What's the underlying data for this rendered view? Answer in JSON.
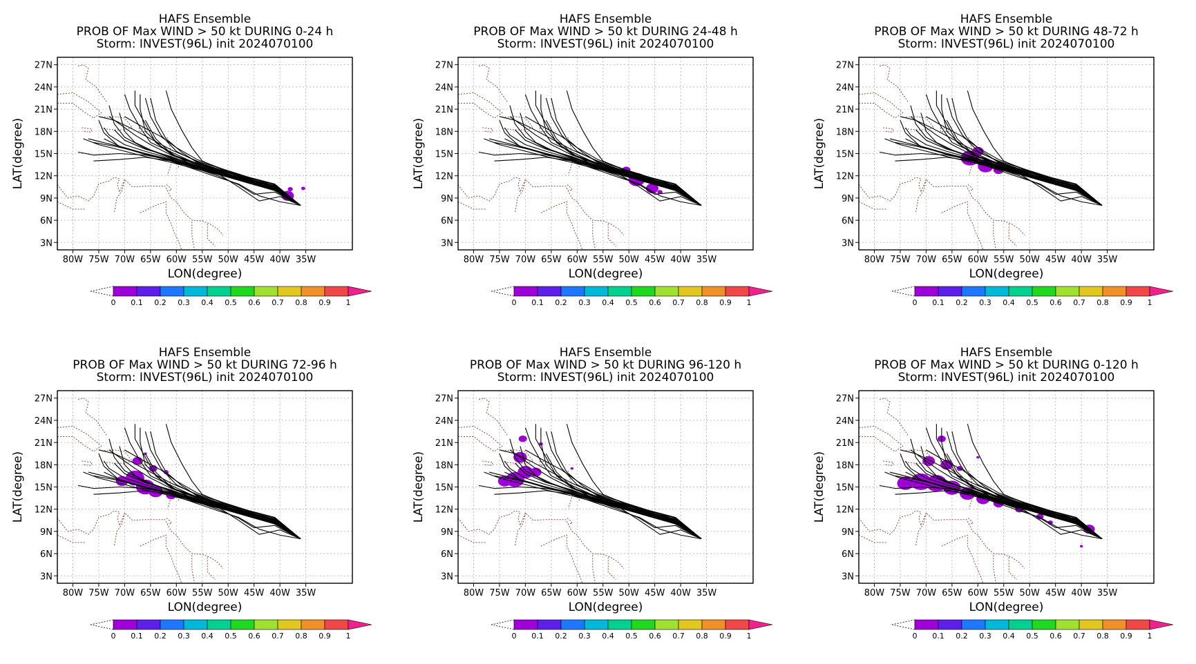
{
  "figure": {
    "panels": [
      {
        "title_line1": "HAFS Ensemble",
        "title_line2": "PROB OF Max WIND > 50 kt DURING  0-24 h",
        "title_line3": "Storm: INVEST(96L) init 2024070100"
      },
      {
        "title_line1": "HAFS Ensemble",
        "title_line2": "PROB OF Max WIND > 50 kt DURING 24-48 h",
        "title_line3": "Storm: INVEST(96L) init 2024070100"
      },
      {
        "title_line1": "HAFS Ensemble",
        "title_line2": "PROB OF Max WIND > 50 kt DURING 48-72 h",
        "title_line3": "Storm: INVEST(96L) init 2024070100"
      },
      {
        "title_line1": "HAFS Ensemble",
        "title_line2": "PROB OF Max WIND > 50 kt DURING 72-96 h",
        "title_line3": "Storm: INVEST(96L) init 2024070100"
      },
      {
        "title_line1": "HAFS Ensemble",
        "title_line2": "PROB OF Max WIND > 50 kt DURING 96-120 h",
        "title_line3": "Storm: INVEST(96L) init 2024070100"
      },
      {
        "title_line1": "HAFS Ensemble",
        "title_line2": "PROB OF Max WIND > 50 kt DURING 0-120 h",
        "title_line3": "Storm: INVEST(96L) init 2024070100"
      }
    ],
    "x_label": "LON(degree)",
    "y_label": "LAT(degree)",
    "x_ticks": [
      "80W",
      "75W",
      "70W",
      "65W",
      "60W",
      "55W",
      "50W",
      "45W",
      "40W",
      "35W"
    ],
    "y_ticks": [
      "3N",
      "6N",
      "9N",
      "12N",
      "15N",
      "18N",
      "21N",
      "24N",
      "27N"
    ],
    "colorbar": {
      "labels": [
        "0",
        "0.1",
        "0.2",
        "0.3",
        "0.4",
        "0.5",
        "0.6",
        "0.7",
        "0.8",
        "0.9",
        "1"
      ],
      "colors": [
        "#9f00d8",
        "#5c20e8",
        "#1e78ff",
        "#00b8d8",
        "#00d090",
        "#20d820",
        "#a0e030",
        "#e0c820",
        "#f09028",
        "#f04848",
        "#f0208c"
      ]
    }
  },
  "chart_data": {
    "type": "map",
    "region": {
      "lon_range": [
        -83,
        -26
      ],
      "lat_range": [
        2,
        28
      ]
    },
    "grid": true,
    "probability_fill_color": "#9f00d8",
    "ensemble_tracks_lonlat": [
      [
        [
          -36,
          8
        ],
        [
          -41,
          10.2
        ],
        [
          -46,
          11.2
        ],
        [
          -51,
          12.5
        ],
        [
          -56,
          13.3
        ],
        [
          -61,
          14.2
        ],
        [
          -66,
          15
        ],
        [
          -70,
          15.8
        ],
        [
          -73,
          16.3
        ],
        [
          -77,
          17
        ]
      ],
      [
        [
          -36,
          8
        ],
        [
          -41,
          10.5
        ],
        [
          -46,
          11.5
        ],
        [
          -51,
          12.4
        ],
        [
          -56,
          13.4
        ],
        [
          -61,
          14.5
        ],
        [
          -65,
          15.5
        ],
        [
          -68,
          16.5
        ],
        [
          -70,
          18
        ],
        [
          -71,
          20.5
        ]
      ],
      [
        [
          -36,
          8
        ],
        [
          -41,
          10.1
        ],
        [
          -46,
          11.3
        ],
        [
          -51,
          12.2
        ],
        [
          -56,
          13.2
        ],
        [
          -61,
          14.1
        ],
        [
          -66,
          14.8
        ],
        [
          -71,
          15
        ],
        [
          -76,
          14.8
        ],
        [
          -79,
          15.2
        ]
      ],
      [
        [
          -36,
          8
        ],
        [
          -41,
          10.6
        ],
        [
          -46,
          11.6
        ],
        [
          -51,
          12.6
        ],
        [
          -56,
          13.6
        ],
        [
          -60,
          14.6
        ],
        [
          -63,
          16
        ],
        [
          -66,
          18
        ],
        [
          -67,
          21
        ],
        [
          -67,
          23
        ]
      ],
      [
        [
          -36,
          8
        ],
        [
          -41,
          10.3
        ],
        [
          -46,
          11.2
        ],
        [
          -51,
          12
        ],
        [
          -56,
          13
        ],
        [
          -61,
          14
        ],
        [
          -66,
          14.5
        ],
        [
          -71,
          14.2
        ],
        [
          -76,
          14
        ]
      ],
      [
        [
          -36,
          8
        ],
        [
          -41,
          10.4
        ],
        [
          -46,
          11.5
        ],
        [
          -51,
          12.6
        ],
        [
          -56,
          13.8
        ],
        [
          -59,
          15.2
        ],
        [
          -62,
          17
        ],
        [
          -64,
          19.5
        ],
        [
          -65,
          22.5
        ]
      ],
      [
        [
          -36,
          8
        ],
        [
          -41,
          10.7
        ],
        [
          -46,
          11.4
        ],
        [
          -51,
          12.3
        ],
        [
          -56,
          13.5
        ],
        [
          -61,
          14.8
        ],
        [
          -65,
          16.2
        ],
        [
          -68,
          17.5
        ],
        [
          -71,
          19
        ],
        [
          -73,
          20
        ]
      ],
      [
        [
          -36,
          8
        ],
        [
          -41,
          10.2
        ],
        [
          -46,
          11
        ],
        [
          -51,
          12.1
        ],
        [
          -56,
          13.1
        ],
        [
          -61,
          14.3
        ],
        [
          -66,
          15.3
        ],
        [
          -70,
          16.2
        ],
        [
          -73,
          17.5
        ],
        [
          -74,
          18.5
        ]
      ],
      [
        [
          -36,
          8
        ],
        [
          -41,
          10.8
        ],
        [
          -46,
          11.7
        ],
        [
          -51,
          12.8
        ],
        [
          -55,
          14
        ],
        [
          -57,
          15.8
        ],
        [
          -59,
          18.2
        ],
        [
          -61,
          21
        ],
        [
          -62,
          23.5
        ]
      ],
      [
        [
          -36,
          8
        ],
        [
          -41,
          10.4
        ],
        [
          -46,
          11.4
        ],
        [
          -51,
          12.4
        ],
        [
          -56,
          13.6
        ],
        [
          -61,
          15.2
        ],
        [
          -65,
          16.5
        ],
        [
          -67,
          18.5
        ],
        [
          -69,
          21
        ],
        [
          -70,
          23
        ]
      ],
      [
        [
          -36,
          8
        ],
        [
          -41,
          10
        ],
        [
          -46,
          11
        ],
        [
          -51,
          12
        ],
        [
          -56,
          12.9
        ],
        [
          -61,
          13.8
        ],
        [
          -66,
          14.6
        ],
        [
          -71,
          15.5
        ],
        [
          -75,
          16.2
        ],
        [
          -78,
          17
        ]
      ],
      [
        [
          -36,
          8
        ],
        [
          -41,
          10.5
        ],
        [
          -46,
          11.6
        ],
        [
          -51,
          12.7
        ],
        [
          -56,
          13.9
        ],
        [
          -60,
          15.3
        ],
        [
          -63,
          17.5
        ],
        [
          -65,
          20
        ],
        [
          -66,
          22.5
        ]
      ],
      [
        [
          -36,
          8
        ],
        [
          -41,
          9.8
        ],
        [
          -45,
          9.5
        ],
        [
          -48,
          10.8
        ],
        [
          -52,
          12
        ],
        [
          -57,
          13.2
        ],
        [
          -62,
          14.3
        ],
        [
          -67,
          15.2
        ],
        [
          -72,
          16
        ],
        [
          -76,
          16.5
        ]
      ],
      [
        [
          -36,
          8
        ],
        [
          -41,
          10.6
        ],
        [
          -46,
          11.8
        ],
        [
          -51,
          12.9
        ],
        [
          -56,
          14.2
        ],
        [
          -60,
          15.8
        ],
        [
          -63,
          17.3
        ],
        [
          -67,
          18.8
        ],
        [
          -70,
          20
        ]
      ],
      [
        [
          -36,
          8
        ],
        [
          -40,
          8.5
        ],
        [
          -44,
          9.3
        ],
        [
          -48,
          10.9
        ],
        [
          -52,
          11.8
        ],
        [
          -57,
          13
        ],
        [
          -62,
          14.2
        ],
        [
          -67,
          15.1
        ],
        [
          -71,
          16
        ],
        [
          -74,
          17
        ]
      ],
      [
        [
          -36,
          8
        ],
        [
          -41,
          10.3
        ],
        [
          -46,
          11.3
        ],
        [
          -51,
          12.5
        ],
        [
          -56,
          13.7
        ],
        [
          -61,
          14.9
        ],
        [
          -64,
          16.5
        ],
        [
          -66,
          19
        ],
        [
          -68,
          21.5
        ],
        [
          -68,
          23.5
        ]
      ],
      [
        [
          -36,
          8
        ],
        [
          -41,
          10.9
        ],
        [
          -46,
          11.8
        ],
        [
          -51,
          12.9
        ],
        [
          -56,
          14
        ],
        [
          -61,
          15.5
        ],
        [
          -65,
          17
        ],
        [
          -69,
          18.5
        ],
        [
          -72,
          19.5
        ],
        [
          -75,
          20
        ]
      ],
      [
        [
          -36,
          8
        ],
        [
          -41,
          10
        ],
        [
          -46,
          11.1
        ],
        [
          -51,
          12.2
        ],
        [
          -56,
          13.3
        ],
        [
          -61,
          14.6
        ],
        [
          -66,
          15.6
        ],
        [
          -70,
          16.8
        ],
        [
          -72,
          18.2
        ]
      ],
      [
        [
          -36,
          8
        ],
        [
          -40,
          9.2
        ],
        [
          -44,
          8.6
        ],
        [
          -48,
          10.5
        ],
        [
          -52,
          12.3
        ],
        [
          -57,
          13.5
        ],
        [
          -61,
          15
        ],
        [
          -64,
          17
        ],
        [
          -66,
          19.5
        ]
      ],
      [
        [
          -36,
          8
        ],
        [
          -41,
          10.5
        ],
        [
          -46,
          11.4
        ],
        [
          -51,
          12.3
        ],
        [
          -56,
          13.3
        ],
        [
          -61,
          14.4
        ],
        [
          -66,
          15.7
        ],
        [
          -70,
          17.2
        ],
        [
          -72,
          19
        ],
        [
          -73,
          21.5
        ]
      ],
      [
        [
          -36,
          8
        ],
        [
          -41,
          10.1
        ],
        [
          -46,
          11.2
        ],
        [
          -51,
          12.1
        ],
        [
          -56,
          13.1
        ],
        [
          -61,
          14
        ],
        [
          -66,
          14.9
        ],
        [
          -71,
          15.9
        ],
        [
          -74,
          17.8
        ],
        [
          -75,
          19.5
        ]
      ]
    ],
    "coastlines_lonlat": [
      [
        [
          -83,
          23
        ],
        [
          -80,
          23.2
        ],
        [
          -77,
          22
        ],
        [
          -74.5,
          20.5
        ],
        [
          -76,
          19.8
        ],
        [
          -78,
          20.7
        ],
        [
          -80,
          21.8
        ],
        [
          -83,
          21.8
        ]
      ],
      [
        [
          -74.5,
          19.9
        ],
        [
          -72,
          20
        ],
        [
          -70,
          19.8
        ],
        [
          -68.5,
          18.5
        ],
        [
          -70,
          18.2
        ],
        [
          -72,
          18.2
        ],
        [
          -74.5,
          18.4
        ]
      ],
      [
        [
          -67.2,
          18.5
        ],
        [
          -65.7,
          18.4
        ],
        [
          -65.6,
          18
        ],
        [
          -67.2,
          17.9
        ],
        [
          -67.2,
          18.5
        ]
      ],
      [
        [
          -78.3,
          18.5
        ],
        [
          -76.3,
          18.3
        ],
        [
          -76.5,
          17.9
        ],
        [
          -77.9,
          18
        ]
      ],
      [
        [
          -79,
          26.8
        ],
        [
          -78,
          27
        ],
        [
          -77,
          26.5
        ],
        [
          -77.5,
          25
        ],
        [
          -76.5,
          24.5
        ],
        [
          -75.5,
          24
        ],
        [
          -74.5,
          23
        ],
        [
          -73.5,
          22
        ]
      ],
      [
        [
          -61.8,
          17.2
        ],
        [
          -61.7,
          17
        ],
        [
          -61.5,
          16.3
        ],
        [
          -61.2,
          15.8
        ],
        [
          -61.2,
          15.2
        ],
        [
          -61,
          14.7
        ],
        [
          -60.9,
          14
        ],
        [
          -61.2,
          13.2
        ],
        [
          -61.7,
          12.1
        ]
      ],
      [
        [
          -59.7,
          13.3
        ],
        [
          -59.4,
          13.1
        ]
      ],
      [
        [
          -61.9,
          10.8
        ],
        [
          -61.4,
          10.5
        ],
        [
          -60.9,
          10.1
        ],
        [
          -61.7,
          10
        ]
      ],
      [
        [
          -83,
          10.8
        ],
        [
          -81,
          9
        ],
        [
          -79,
          9.3
        ],
        [
          -77,
          8.6
        ],
        [
          -76,
          9.3
        ],
        [
          -75,
          10.9
        ],
        [
          -73,
          11.3
        ],
        [
          -72,
          11.8
        ],
        [
          -71,
          11.6
        ],
        [
          -71.4,
          10.8
        ],
        [
          -71,
          9.8
        ],
        [
          -70,
          11.5
        ],
        [
          -68.5,
          10.5
        ],
        [
          -66,
          10.6
        ],
        [
          -64,
          10.6
        ],
        [
          -62.2,
          10.6
        ],
        [
          -61,
          9
        ],
        [
          -60,
          8.5
        ],
        [
          -58.5,
          7
        ],
        [
          -57,
          6
        ],
        [
          -55,
          5.9
        ],
        [
          -53.5,
          5.5
        ],
        [
          -52,
          4.8
        ],
        [
          -51,
          4
        ]
      ],
      [
        [
          -83,
          8.5
        ],
        [
          -80,
          7.5
        ],
        [
          -77.5,
          7.5
        ]
      ],
      [
        [
          -70,
          11.5
        ],
        [
          -70.5,
          10
        ],
        [
          -71.5,
          9
        ],
        [
          -72,
          7
        ]
      ],
      [
        [
          -67,
          7
        ],
        [
          -64,
          8
        ],
        [
          -62,
          8.5
        ],
        [
          -62,
          7
        ],
        [
          -61,
          5.5
        ],
        [
          -60.5,
          4.5
        ],
        [
          -59.5,
          3
        ],
        [
          -59,
          2
        ]
      ],
      [
        [
          -57,
          5.8
        ],
        [
          -57,
          4
        ],
        [
          -56.5,
          2
        ]
      ],
      [
        [
          -54,
          5.5
        ],
        [
          -54,
          3.5
        ],
        [
          -52.5,
          2.5
        ]
      ]
    ]
  }
}
